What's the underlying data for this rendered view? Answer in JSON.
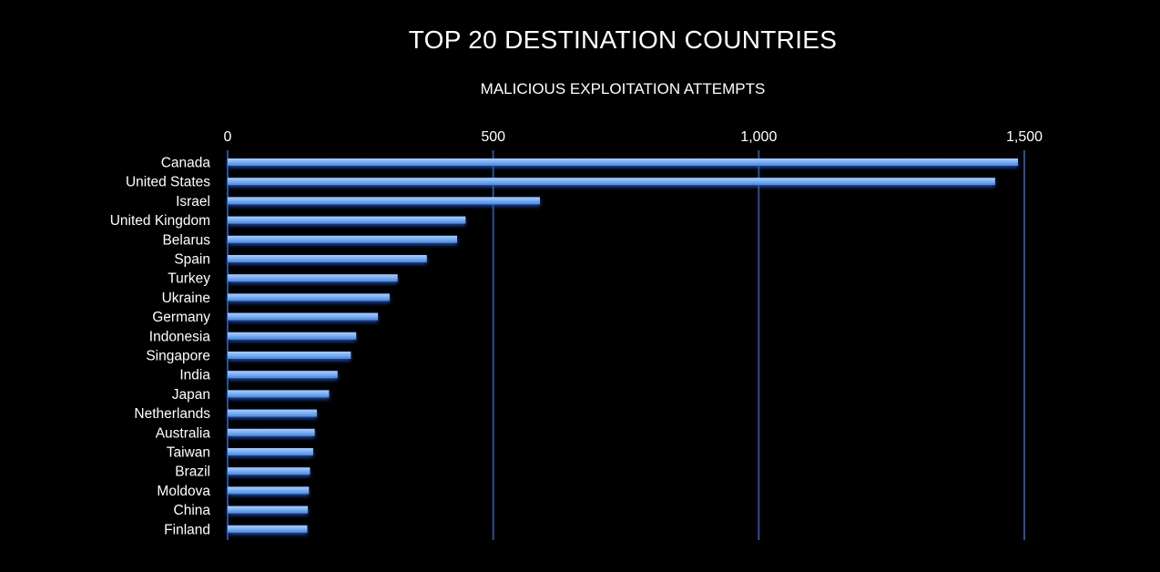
{
  "chart_data": {
    "type": "bar",
    "orientation": "horizontal",
    "title": "TOP 20 DESTINATION COUNTRIES",
    "subtitle": "MALICIOUS EXPLOITATION ATTEMPTS",
    "xlim": [
      0,
      1500
    ],
    "x_ticks": [
      "0",
      "500",
      "1,000",
      "1,500"
    ],
    "x_tick_values": [
      0,
      500,
      1000,
      1500
    ],
    "x_axis_position": "top",
    "grid": true,
    "categories": [
      "Canada",
      "United States",
      "Israel",
      "United Kingdom",
      "Belarus",
      "Spain",
      "Turkey",
      "Ukraine",
      "Germany",
      "Indonesia",
      "Singapore",
      "India",
      "Japan",
      "Netherlands",
      "Australia",
      "Taiwan",
      "Brazil",
      "Moldova",
      "China",
      "Finland"
    ],
    "values": [
      1488,
      1445,
      588,
      448,
      432,
      375,
      320,
      305,
      283,
      242,
      232,
      207,
      191,
      168,
      164,
      161,
      155,
      153,
      151,
      150
    ],
    "bar_color": "#7fb2f5",
    "grid_color": "#2f4f8f"
  }
}
